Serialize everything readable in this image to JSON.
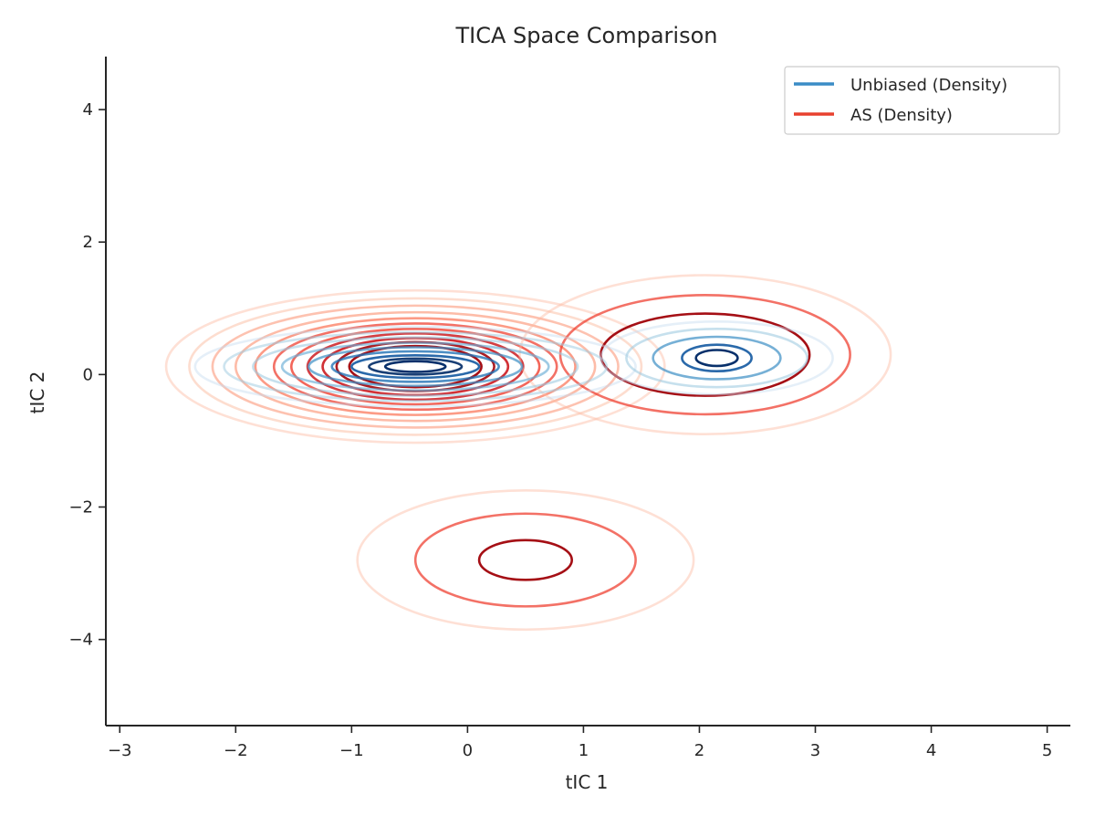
{
  "chart_data": {
    "type": "contour",
    "title": "TICA Space Comparison",
    "xlabel": "tIC 1",
    "ylabel": "tIC 2",
    "xlim": [
      -3.12,
      5.2
    ],
    "ylim": [
      -5.3,
      4.8
    ],
    "xticks": [
      -3,
      -2,
      -1,
      0,
      1,
      2,
      3,
      4,
      5
    ],
    "xtick_labels": [
      "−3",
      "−2",
      "−1",
      "0",
      "1",
      "2",
      "3",
      "4",
      "5"
    ],
    "yticks": [
      -4,
      -2,
      0,
      2,
      4
    ],
    "ytick_labels": [
      "−4",
      "−2",
      "0",
      "2",
      "4"
    ],
    "grid": false,
    "legend_position": "top-right",
    "series": [
      {
        "name": "Unbiased (Density)",
        "color": "#3a8cc6",
        "colormap": "Blues",
        "modes": [
          {
            "cx": -0.45,
            "cy": 0.12,
            "rx": [
              1.9,
              1.65,
              1.4,
              1.15,
              0.92,
              0.72,
              0.55,
              0.4,
              0.26
            ],
            "ry": [
              0.6,
              0.52,
              0.44,
              0.36,
              0.29,
              0.23,
              0.17,
              0.12,
              0.08
            ]
          },
          {
            "cx": 2.15,
            "cy": 0.25,
            "rx": [
              1.0,
              0.78,
              0.55,
              0.3,
              0.18
            ],
            "ry": [
              0.55,
              0.44,
              0.32,
              0.2,
              0.12
            ]
          }
        ]
      },
      {
        "name": "AS (Density)",
        "color": "#e8402e",
        "colormap": "Reds",
        "modes": [
          {
            "cx": -0.45,
            "cy": 0.12,
            "rx": [
              2.15,
              1.95,
              1.75,
              1.55,
              1.38,
              1.22,
              1.07,
              0.93,
              0.8,
              0.68,
              0.57
            ],
            "ry": [
              1.15,
              1.03,
              0.92,
              0.82,
              0.73,
              0.65,
              0.57,
              0.5,
              0.43,
              0.37,
              0.31
            ]
          },
          {
            "cx": 2.05,
            "cy": 0.3,
            "rx": [
              1.6,
              1.25,
              0.9
            ],
            "ry": [
              1.2,
              0.9,
              0.62
            ]
          },
          {
            "cx": 0.5,
            "cy": -2.8,
            "rx": [
              1.45,
              0.95,
              0.4
            ],
            "ry": [
              1.05,
              0.7,
              0.3
            ]
          }
        ]
      }
    ]
  }
}
